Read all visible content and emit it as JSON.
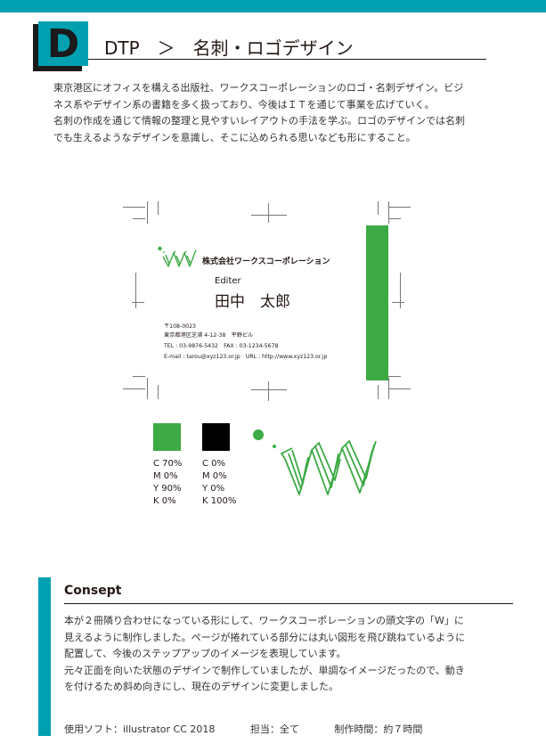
{
  "header": {
    "letter": "D",
    "title": "DTP　＞　名刺・ロゴデザイン",
    "accent_color": "#00a0b0"
  },
  "intro": {
    "lines": [
      "東京港区にオフィスを構える出版社、ワークスコーポレーションのロゴ・名刺デザイン。ビジ",
      "ネス系やデザイン系の書籍を多く扱っており、今後はＩＴを通じて事業を広げていく。",
      "名刺の作成を通じて情報の整理と見やすいレイアウトの手法を学ぶ。ロゴのデザインでは名刺",
      "でも生えるようなデザインを意識し、そこに込められる思いなども形にすること。"
    ]
  },
  "card": {
    "company": "株式会社ワークスコーポレーション",
    "position": "Editer",
    "person": "田中　太郎",
    "address_lines": [
      "〒108-0023",
      "東京都港区芝浦 4-12-38　平野ビル",
      "TEL : 03-9876-5432　FAX : 03-1234-5678",
      "E-mail : tarou@xyz123.or.jp　URL : http://www.xyz123.or.jp"
    ],
    "logo_icon": "works-w-logo-icon",
    "band_color": "#3daa45"
  },
  "colors": {
    "green": {
      "hex": "#3daa45",
      "cmyk": [
        "C 70%",
        "M 0%",
        "Y 90%",
        "K 0%"
      ]
    },
    "black": {
      "hex": "#000000",
      "cmyk": [
        "C 0%",
        "M 0%",
        "Y 0%",
        "K 100%"
      ]
    }
  },
  "concept": {
    "title": "Consept",
    "lines": [
      "本が２冊隣り合わせになっている形にして、ワークスコーポレーションの頭文字の「W」に",
      "見えるように制作しました。ページが捲れている部分には丸い図形を飛び跳ねているように",
      "配置して、今後のステップアップのイメージを表現しています。",
      "元々正面を向いた状態のデザインで制作していましたが、単調なイメージだったので、動き",
      "を付けるため斜め向きにし、現在のデザインに変更しました。"
    ]
  },
  "footer": {
    "software": "使用ソフト：illustrator CC 2018",
    "role": "担当：全て",
    "time": "制作時間：約７時間"
  }
}
